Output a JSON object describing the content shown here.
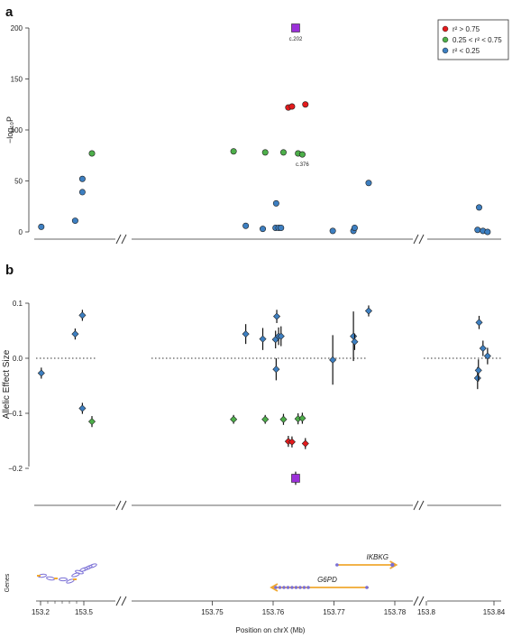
{
  "panel_labels": [
    "a",
    "b"
  ],
  "colors": {
    "red": "#e41a1c",
    "green": "#4daf4a",
    "blue": "#3d7fc1",
    "purple": "#9b30d9",
    "orange": "#f0a830",
    "gene_blob": "#7a6fd6"
  },
  "chart_data": [
    {
      "type": "scatter",
      "panel": "a",
      "ylabel": "−log₁₀P",
      "yticks": [
        0,
        50,
        100,
        150,
        200
      ],
      "ylim": [
        0,
        200
      ],
      "segments": [
        "153.2–153.52",
        "153.74–153.78",
        "153.8–153.84"
      ],
      "legend": {
        "placement": "top-right",
        "items": [
          {
            "label": "r² > 0.75",
            "color": "red"
          },
          {
            "label": "0.25 < r² < 0.75",
            "color": "green"
          },
          {
            "label": "r² < 0.25",
            "color": "blue"
          }
        ]
      },
      "annotations": [
        {
          "text": "c.202",
          "x": 153.7637,
          "y": 200
        },
        {
          "text": "c.376",
          "x": 153.7648,
          "y": 77
        }
      ],
      "series": [
        {
          "points": [
            {
              "x": 153.205,
              "y": 5,
              "color": "blue"
            },
            {
              "x": 153.44,
              "y": 11,
              "color": "blue"
            },
            {
              "x": 153.49,
              "y": 39,
              "color": "blue"
            },
            {
              "x": 153.49,
              "y": 52,
              "color": "blue"
            },
            {
              "x": 153.515,
              "y": 77,
              "color": "green"
            },
            {
              "x": 153.7535,
              "y": 79,
              "color": "green"
            },
            {
              "x": 153.7555,
              "y": 6,
              "color": "blue"
            },
            {
              "x": 153.7583,
              "y": 3,
              "color": "blue"
            },
            {
              "x": 153.7587,
              "y": 78,
              "color": "green"
            },
            {
              "x": 153.7604,
              "y": 4,
              "color": "blue"
            },
            {
              "x": 153.7605,
              "y": 28,
              "color": "blue"
            },
            {
              "x": 153.7609,
              "y": 4,
              "color": "blue"
            },
            {
              "x": 153.7613,
              "y": 4,
              "color": "blue"
            },
            {
              "x": 153.7617,
              "y": 78,
              "color": "green"
            },
            {
              "x": 153.7625,
              "y": 122,
              "color": "red"
            },
            {
              "x": 153.7631,
              "y": 123,
              "color": "red"
            },
            {
              "x": 153.7637,
              "y": 200,
              "color": "purple",
              "shape": "square"
            },
            {
              "x": 153.7641,
              "y": 77,
              "color": "green"
            },
            {
              "x": 153.7648,
              "y": 76,
              "color": "green"
            },
            {
              "x": 153.7653,
              "y": 125,
              "color": "red"
            },
            {
              "x": 153.7698,
              "y": 1,
              "color": "blue"
            },
            {
              "x": 153.7732,
              "y": 1,
              "color": "blue"
            },
            {
              "x": 153.7734,
              "y": 4,
              "color": "blue"
            },
            {
              "x": 153.7757,
              "y": 48,
              "color": "blue"
            },
            {
              "x": 153.8303,
              "y": 2,
              "color": "blue"
            },
            {
              "x": 153.8312,
              "y": 24,
              "color": "blue"
            },
            {
              "x": 153.8335,
              "y": 1,
              "color": "blue"
            },
            {
              "x": 153.8362,
              "y": 0,
              "color": "blue"
            }
          ]
        }
      ]
    },
    {
      "type": "scatter",
      "panel": "b",
      "ylabel": "Allelic Effect Size",
      "yticks": [
        -0.2,
        -0.1,
        0.0,
        0.1
      ],
      "ytick_labels": [
        "−0.2",
        "−0.1",
        "0.0",
        "0.1"
      ],
      "ylim": [
        -0.25,
        0.12
      ],
      "reference_line": 0,
      "series": [
        {
          "points": [
            {
              "x": 153.205,
              "y": -0.027,
              "err": 0.01,
              "color": "blue"
            },
            {
              "x": 153.44,
              "y": 0.044,
              "err": 0.01,
              "color": "blue"
            },
            {
              "x": 153.49,
              "y": 0.078,
              "err": 0.01,
              "color": "blue"
            },
            {
              "x": 153.49,
              "y": -0.091,
              "err": 0.01,
              "color": "blue"
            },
            {
              "x": 153.515,
              "y": -0.115,
              "err": 0.01,
              "color": "green"
            },
            {
              "x": 153.7535,
              "y": -0.111,
              "err": 0.008,
              "color": "green"
            },
            {
              "x": 153.7555,
              "y": 0.044,
              "err": 0.018,
              "color": "blue"
            },
            {
              "x": 153.7583,
              "y": 0.035,
              "err": 0.02,
              "color": "blue"
            },
            {
              "x": 153.7587,
              "y": -0.111,
              "err": 0.008,
              "color": "green"
            },
            {
              "x": 153.7604,
              "y": 0.034,
              "err": 0.016,
              "color": "blue"
            },
            {
              "x": 153.7605,
              "y": -0.02,
              "err": 0.02,
              "color": "blue"
            },
            {
              "x": 153.7606,
              "y": 0.076,
              "err": 0.012,
              "color": "blue"
            },
            {
              "x": 153.7609,
              "y": 0.04,
              "err": 0.016,
              "color": "blue"
            },
            {
              "x": 153.7613,
              "y": 0.04,
              "err": 0.018,
              "color": "blue"
            },
            {
              "x": 153.7617,
              "y": -0.111,
              "err": 0.01,
              "color": "green"
            },
            {
              "x": 153.7625,
              "y": -0.151,
              "err": 0.01,
              "color": "red"
            },
            {
              "x": 153.7631,
              "y": -0.152,
              "err": 0.01,
              "color": "red"
            },
            {
              "x": 153.7637,
              "y": -0.218,
              "err": 0.012,
              "color": "purple",
              "shape": "square"
            },
            {
              "x": 153.7641,
              "y": -0.11,
              "err": 0.01,
              "color": "green"
            },
            {
              "x": 153.7648,
              "y": -0.109,
              "err": 0.01,
              "color": "green"
            },
            {
              "x": 153.7653,
              "y": -0.155,
              "err": 0.01,
              "color": "red"
            },
            {
              "x": 153.7698,
              "y": -0.003,
              "err": 0.045,
              "color": "blue"
            },
            {
              "x": 153.7732,
              "y": 0.04,
              "err": 0.045,
              "color": "blue"
            },
            {
              "x": 153.7734,
              "y": 0.03,
              "err": 0.015,
              "color": "blue"
            },
            {
              "x": 153.7757,
              "y": 0.086,
              "err": 0.01,
              "color": "blue"
            },
            {
              "x": 153.8303,
              "y": -0.036,
              "err": 0.02,
              "color": "blue"
            },
            {
              "x": 153.8308,
              "y": -0.022,
              "err": 0.02,
              "color": "blue"
            },
            {
              "x": 153.8312,
              "y": 0.065,
              "err": 0.012,
              "color": "blue"
            },
            {
              "x": 153.8335,
              "y": 0.018,
              "err": 0.014,
              "color": "blue"
            },
            {
              "x": 153.8362,
              "y": 0.004,
              "err": 0.015,
              "color": "blue"
            }
          ]
        }
      ]
    },
    {
      "type": "gene-track",
      "ylabel": "Genes",
      "xlabel": "Position on chrX (Mb)",
      "xticks": [
        "153.2",
        "153.5",
        "153.75",
        "153.76",
        "153.77",
        "153.78",
        "153.8",
        "153.84"
      ],
      "genes": [
        {
          "name": "IKBKG",
          "start": 153.7705,
          "end": 153.7809
        },
        {
          "name": "G6PD",
          "start": 153.7597,
          "end": 153.7757
        }
      ]
    }
  ]
}
